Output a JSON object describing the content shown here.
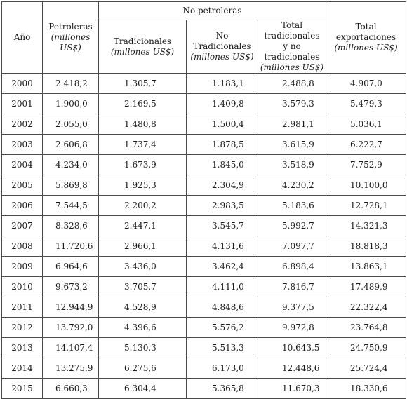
{
  "headers": {
    "year": "Año",
    "petroleras": "Petroleras",
    "petroleras_unit": "(millones US$)",
    "no_petroleras": "No petroleras",
    "tradicionales": "Tradicionales",
    "tradicionales_unit": "(millones US$)",
    "no_tradicionales": "No Tradicionales",
    "no_tradicionales_unit": "(millones US$)",
    "total_trad_line1": "Total tradicionales",
    "total_trad_line2": "y no tradicionales",
    "total_trad_unit": "(millones US$)",
    "total_export": "Total exportaciones",
    "total_export_unit": "(millones US$)"
  },
  "rows": [
    {
      "year": "2000",
      "petroleras": "2.418,2",
      "tradicionales": "1.305,7",
      "no_tradicionales": "1.183,1",
      "total_trad": "2.488,8",
      "total_export": "4.907,0"
    },
    {
      "year": "2001",
      "petroleras": "1.900,0",
      "tradicionales": "2.169,5",
      "no_tradicionales": "1.409,8",
      "total_trad": "3.579,3",
      "total_export": "5.479,3"
    },
    {
      "year": "2002",
      "petroleras": "2.055,0",
      "tradicionales": "1.480,8",
      "no_tradicionales": "1.500,4",
      "total_trad": "2.981,1",
      "total_export": "5.036,1"
    },
    {
      "year": "2003",
      "petroleras": "2.606,8",
      "tradicionales": "1.737,4",
      "no_tradicionales": "1.878,5",
      "total_trad": "3.615,9",
      "total_export": "6.222,7"
    },
    {
      "year": "2004",
      "petroleras": "4.234,0",
      "tradicionales": "1.673,9",
      "no_tradicionales": "1.845,0",
      "total_trad": "3.518,9",
      "total_export": "7.752,9"
    },
    {
      "year": "2005",
      "petroleras": "5.869,8",
      "tradicionales": "1.925,3",
      "no_tradicionales": "2.304,9",
      "total_trad": "4.230,2",
      "total_export": "10.100,0"
    },
    {
      "year": "2006",
      "petroleras": "7.544,5",
      "tradicionales": "2.200,2",
      "no_tradicionales": "2.983,5",
      "total_trad": "5.183,6",
      "total_export": "12.728,1"
    },
    {
      "year": "2007",
      "petroleras": "8.328,6",
      "tradicionales": "2.447,1",
      "no_tradicionales": "3.545,7",
      "total_trad": "5.992,7",
      "total_export": "14.321,3"
    },
    {
      "year": "2008",
      "petroleras": "11.720,6",
      "tradicionales": "2.966,1",
      "no_tradicionales": "4.131,6",
      "total_trad": "7.097,7",
      "total_export": "18.818,3"
    },
    {
      "year": "2009",
      "petroleras": "6.964,6",
      "tradicionales": "3.436,0",
      "no_tradicionales": "3.462,4",
      "total_trad": "6.898,4",
      "total_export": "13.863,1"
    },
    {
      "year": "2010",
      "petroleras": "9.673,2",
      "tradicionales": "3.705,7",
      "no_tradicionales": "4.111,0",
      "total_trad": "7.816,7",
      "total_export": "17.489,9"
    },
    {
      "year": "2011",
      "petroleras": "12.944,9",
      "tradicionales": "4.528,9",
      "no_tradicionales": "4.848,6",
      "total_trad": "9.377,5",
      "total_export": "22.322,4"
    },
    {
      "year": "2012",
      "petroleras": "13.792,0",
      "tradicionales": "4.396,6",
      "no_tradicionales": "5.576,2",
      "total_trad": "9.972,8",
      "total_export": "23.764,8"
    },
    {
      "year": "2013",
      "petroleras": "14.107,4",
      "tradicionales": "5.130,3",
      "no_tradicionales": "5.513,3",
      "total_trad": "10.643,5",
      "total_export": "24.750,9"
    },
    {
      "year": "2014",
      "petroleras": "13.275,9",
      "tradicionales": "6.275,6",
      "no_tradicionales": "6.173,0",
      "total_trad": "12.448,6",
      "total_export": "25.724,4"
    },
    {
      "year": "2015",
      "petroleras": "6.660,3",
      "tradicionales": "6.304,4",
      "no_tradicionales": "5.365,8",
      "total_trad": "11.670,3",
      "total_export": "18.330,6"
    }
  ]
}
